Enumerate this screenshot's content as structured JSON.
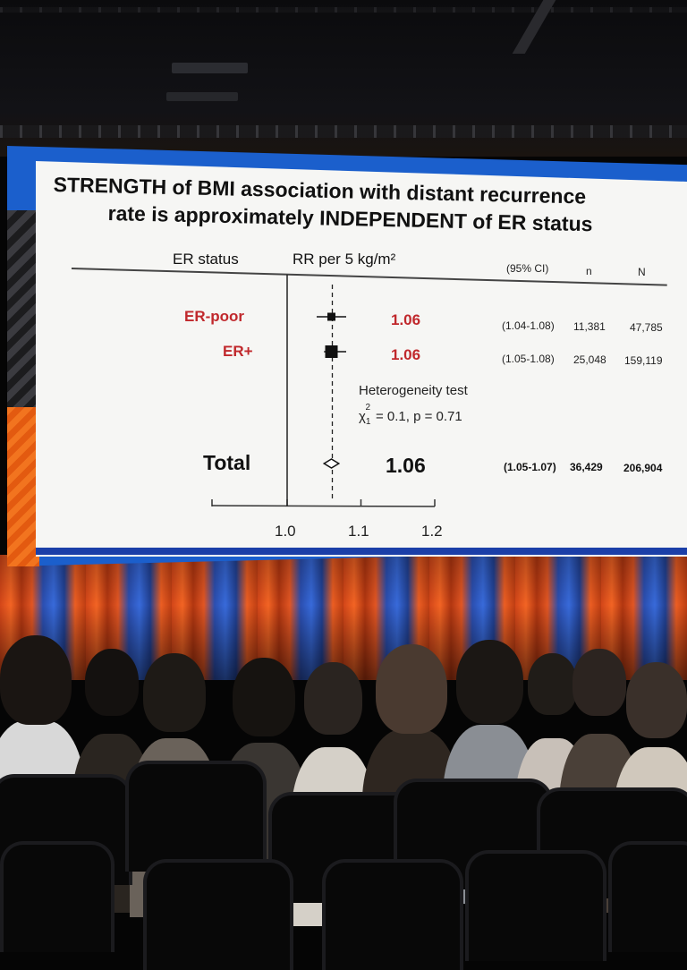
{
  "slide": {
    "title_line1": "STRENGTH of BMI association with distant recurrence",
    "title_line2": "rate is approximately INDEPENDENT of ER status",
    "headers": {
      "er_status": "ER status",
      "rr": "RR per 5 kg/m²",
      "ci": "(95% CI)",
      "n": "n",
      "N": "N"
    },
    "rows": [
      {
        "label": "ER-poor",
        "rr": "1.06",
        "ci": "(1.04-1.08)",
        "n": "11,381",
        "N": "47,785"
      },
      {
        "label": "ER+",
        "rr": "1.06",
        "ci": "(1.05-1.08)",
        "n": "25,048",
        "N": "159,119"
      }
    ],
    "heterogeneity": {
      "label": "Heterogeneity test",
      "stat_symbol": "χ",
      "stat_sub": "1",
      "stat_sup": "2",
      "stat_text": "= 0.1,  p = 0.71"
    },
    "total": {
      "label": "Total",
      "rr": "1.06",
      "ci": "(1.05-1.07)",
      "n": "36,429",
      "N": "206,904"
    },
    "axis_ticks": [
      "1.0",
      "1.1",
      "1.2"
    ]
  },
  "forest": {
    "axis_range": [
      1.0,
      1.2
    ],
    "ticks": [
      1.0,
      1.1,
      1.2
    ],
    "reference_value": 1.0,
    "pooled_value": 1.06,
    "estimates": [
      {
        "point": 1.06,
        "low": 1.04,
        "high": 1.08
      },
      {
        "point": 1.06,
        "low": 1.05,
        "high": 1.08
      }
    ],
    "total_estimate": {
      "point": 1.06,
      "low": 1.05,
      "high": 1.07
    }
  },
  "colors": {
    "accent_red": "#c0282c",
    "frame_blue": "#1b5fcc",
    "frame_orange": "#f2741f"
  }
}
